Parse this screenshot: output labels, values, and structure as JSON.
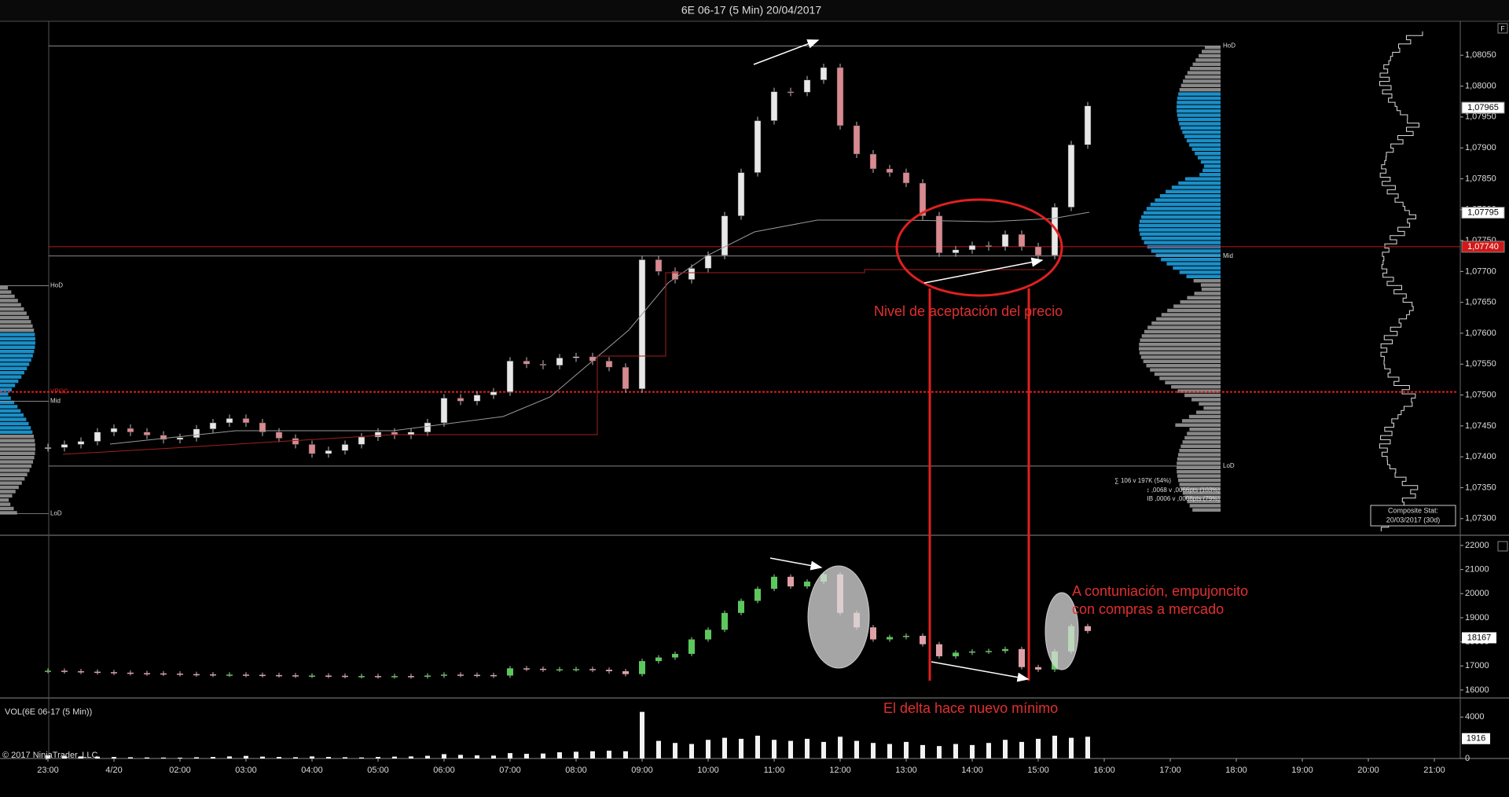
{
  "title": "6E 06-17 (5 Min)  20/04/2017",
  "corner_button": "F",
  "price_panel": {
    "ylim": [
      1.07273,
      1.08105
    ],
    "yticks": [
      {
        "value": 1.0805,
        "label": "1,08050"
      },
      {
        "value": 1.08,
        "label": "1,08000"
      },
      {
        "value": 1.0795,
        "label": "1,07950"
      },
      {
        "value": 1.079,
        "label": "1,07900"
      },
      {
        "value": 1.0785,
        "label": "1,07850"
      },
      {
        "value": 1.078,
        "label": "1,07800"
      },
      {
        "value": 1.0775,
        "label": "1,07750"
      },
      {
        "value": 1.077,
        "label": "1,07700"
      },
      {
        "value": 1.0765,
        "label": "1,07650"
      },
      {
        "value": 1.076,
        "label": "1,07600"
      },
      {
        "value": 1.0755,
        "label": "1,07550"
      },
      {
        "value": 1.075,
        "label": "1,07500"
      },
      {
        "value": 1.0745,
        "label": "1,07450"
      },
      {
        "value": 1.074,
        "label": "1,07400"
      },
      {
        "value": 1.0735,
        "label": "1,07350"
      },
      {
        "value": 1.073,
        "label": "1,07300"
      }
    ],
    "closes": [
      1.07415,
      1.0742,
      1.07425,
      1.0744,
      1.07446,
      1.0744,
      1.07435,
      1.07428,
      1.07431,
      1.07445,
      1.07455,
      1.07462,
      1.07455,
      1.0744,
      1.0743,
      1.0742,
      1.07405,
      1.0741,
      1.0742,
      1.07432,
      1.0744,
      1.07435,
      1.0744,
      1.07455,
      1.07495,
      1.0749,
      1.075,
      1.07505,
      1.07555,
      1.0755,
      1.07548,
      1.0756,
      1.07562,
      1.07555,
      1.07545,
      1.0751,
      1.07719,
      1.077,
      1.07687,
      1.07705,
      1.07726,
      1.0779,
      1.0786,
      1.07944,
      1.07991,
      1.0799,
      1.0801,
      1.0803,
      1.07936,
      1.0789,
      1.07866,
      1.0786,
      1.07843,
      1.0779,
      1.0773,
      1.07735,
      1.07742,
      1.0774,
      1.0776,
      1.0774,
      1.07726,
      1.07804,
      1.07905,
      1.07968
    ],
    "levels": [
      {
        "label": "HoD",
        "value": 1.08065
      },
      {
        "label": "Mid",
        "value": 1.07725
      },
      {
        "label": "LoD",
        "value": 1.07385
      }
    ],
    "session_levels": [
      {
        "label": "HoD",
        "value": 1.07677
      },
      {
        "label": "VPOC",
        "value": 1.07505
      },
      {
        "label": "Mid",
        "value": 1.0749
      },
      {
        "label": "LoD",
        "value": 1.07308
      }
    ],
    "price_markers": [
      {
        "value": 1.07965,
        "label": "1,07965"
      },
      {
        "value": 1.07795,
        "label": "1,07795"
      },
      {
        "value": 1.0774,
        "label": "1,07740"
      }
    ],
    "stats": [
      "∑ 106 v 197K (54%)",
      "↕ ,0068 v ,0066pts (103%)",
      "IB ,0006 v ,0008pts (79%)"
    ],
    "composite": [
      "Composite Stat:",
      "20/03/2017 (30d)"
    ],
    "annotation": "Nivel de aceptación del precio"
  },
  "delta_panel": {
    "ylim": [
      15670,
      22390
    ],
    "yticks": [
      22000,
      21000,
      20000,
      19000,
      18000,
      17000,
      16000
    ],
    "closes": [
      16800,
      16780,
      16760,
      16740,
      16720,
      16700,
      16690,
      16680,
      16660,
      16650,
      16640,
      16640,
      16630,
      16620,
      16610,
      16600,
      16600,
      16590,
      16580,
      16580,
      16570,
      16580,
      16570,
      16600,
      16640,
      16630,
      16620,
      16600,
      16900,
      16880,
      16850,
      16860,
      16870,
      16840,
      16780,
      16660,
      17200,
      17350,
      17500,
      18100,
      18500,
      19200,
      19700,
      20200,
      20700,
      20300,
      20500,
      20800,
      19200,
      18600,
      18100,
      18200,
      18250,
      17900,
      17400,
      17550,
      17600,
      17620,
      17700,
      16950,
      16850,
      17600,
      18650,
      18450
    ],
    "marker": {
      "value": 18167,
      "label": "18167"
    },
    "annotations": [
      "A contuniación, empujoncito",
      "con compras a mercado",
      "El delta hace nuevo mínimo"
    ]
  },
  "volume_panel": {
    "title": "VOL(6E 06-17 (5 Min))",
    "ylim": [
      0,
      5690
    ],
    "yticks": [
      4000,
      0
    ],
    "values": [
      300,
      250,
      200,
      180,
      150,
      120,
      100,
      90,
      80,
      120,
      150,
      200,
      250,
      180,
      150,
      120,
      200,
      150,
      120,
      100,
      150,
      180,
      200,
      260,
      420,
      350,
      300,
      280,
      520,
      450,
      480,
      600,
      650,
      700,
      750,
      700,
      4500,
      1700,
      1500,
      1400,
      1800,
      2000,
      1900,
      2200,
      1800,
      1700,
      1900,
      1600,
      2100,
      1700,
      1500,
      1400,
      1600,
      1300,
      1200,
      1400,
      1300,
      1500,
      1800,
      1600,
      1900,
      2200,
      2000,
      2100
    ],
    "marker": {
      "value": 1916,
      "label": "1916"
    }
  },
  "time_axis": [
    "23:00",
    "4/20",
    "02:00",
    "03:00",
    "04:00",
    "05:00",
    "06:00",
    "07:00",
    "08:00",
    "09:00",
    "10:00",
    "11:00",
    "12:00",
    "13:00",
    "14:00",
    "15:00",
    "16:00",
    "17:00",
    "18:00",
    "19:00",
    "20:00",
    "21:00"
  ],
  "copyright": "© 2017 NinjaTrader, LLC"
}
